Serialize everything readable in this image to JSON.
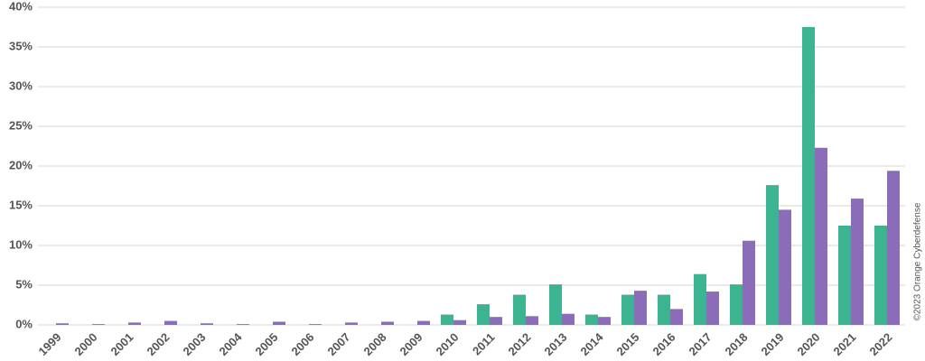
{
  "chart_data": {
    "type": "bar",
    "categories": [
      "1999",
      "2000",
      "2001",
      "2002",
      "2003",
      "2004",
      "2005",
      "2006",
      "2007",
      "2008",
      "2009",
      "2010",
      "2011",
      "2012",
      "2013",
      "2014",
      "2015",
      "2016",
      "2017",
      "2018",
      "2019",
      "2020",
      "2021",
      "2022"
    ],
    "series": [
      {
        "color": "#3db491",
        "values": [
          0,
          0,
          0,
          0,
          0,
          0,
          0,
          0,
          0,
          0,
          0,
          1.3,
          2.6,
          3.8,
          5.1,
          1.3,
          3.8,
          3.8,
          6.4,
          5.1,
          17.6,
          37.5,
          12.5,
          12.5
        ]
      },
      {
        "color": "#8b6cb8",
        "values": [
          0.2,
          0.1,
          0.3,
          0.5,
          0.2,
          0.1,
          0.4,
          0.1,
          0.3,
          0.4,
          0.5,
          0.6,
          1.0,
          1.1,
          1.4,
          1.0,
          4.3,
          2.0,
          4.2,
          10.6,
          14.5,
          22.3,
          15.9,
          19.4
        ]
      }
    ],
    "ylim": [
      0,
      40
    ],
    "yticks": [
      {
        "value": 0,
        "label": "0%"
      },
      {
        "value": 5,
        "label": "5%"
      },
      {
        "value": 10,
        "label": "10%"
      },
      {
        "value": 15,
        "label": "15%"
      },
      {
        "value": 20,
        "label": "20%"
      },
      {
        "value": 25,
        "label": "25%"
      },
      {
        "value": 30,
        "label": "30%"
      },
      {
        "value": 35,
        "label": "35%"
      },
      {
        "value": 40,
        "label": "40%"
      }
    ],
    "grid": true,
    "annotation": "©2023 Orange Cyberdefense"
  }
}
